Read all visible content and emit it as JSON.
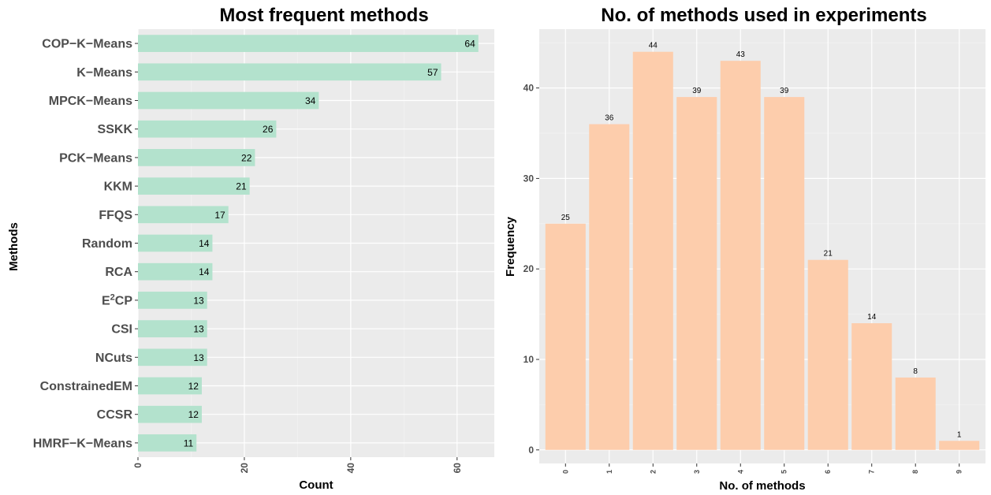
{
  "chart_data": [
    {
      "type": "bar",
      "orientation": "horizontal",
      "title": "Most frequent methods",
      "xlabel": "Count",
      "ylabel": "Methods",
      "xlim": [
        0,
        67
      ],
      "xticks": [
        0,
        20,
        40,
        60
      ],
      "categories": [
        "COP−K−Means",
        "K−Means",
        "MPCK−Means",
        "SSKK",
        "PCK−Means",
        "KKM",
        "FFQS",
        "Random",
        "RCA",
        "E2CP",
        "CSI",
        "NCuts",
        "ConstrainedEM",
        "CCSR",
        "HMRF−K−Means"
      ],
      "values": [
        64,
        57,
        34,
        26,
        22,
        21,
        17,
        14,
        14,
        13,
        13,
        13,
        12,
        12,
        11
      ],
      "bar_color": "#b3e2cd",
      "grid": true
    },
    {
      "type": "bar",
      "orientation": "vertical",
      "title": "No. of methods used in experiments",
      "xlabel": "No. of methods",
      "ylabel": "Frequency",
      "ylim": [
        -1.5,
        46.5
      ],
      "yticks": [
        0,
        10,
        20,
        30,
        40
      ],
      "categories": [
        "0",
        "1",
        "2",
        "3",
        "4",
        "5",
        "6",
        "7",
        "8",
        "9"
      ],
      "values": [
        25,
        36,
        44,
        39,
        43,
        39,
        21,
        14,
        8,
        1
      ],
      "bar_color": "#fdcdac",
      "grid": true
    }
  ]
}
